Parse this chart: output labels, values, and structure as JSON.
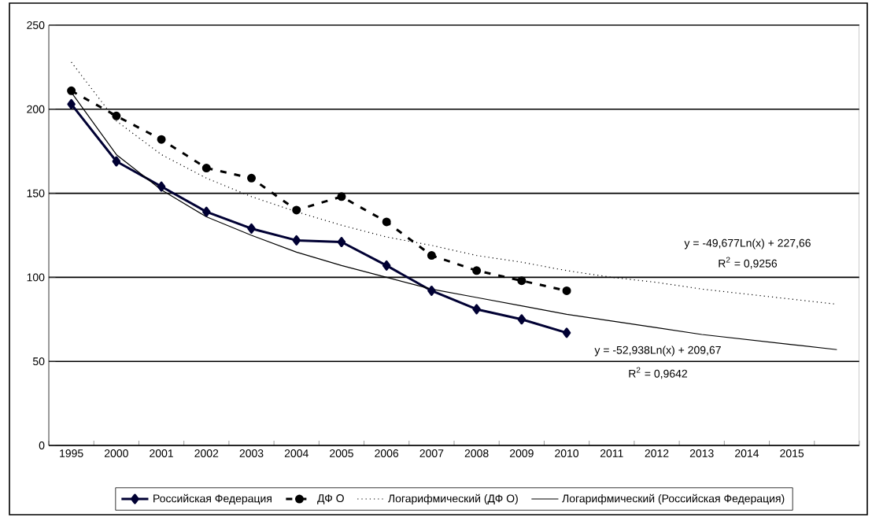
{
  "chart_data": {
    "type": "line",
    "categories": [
      "1995",
      "2000",
      "2001",
      "2002",
      "2003",
      "2004",
      "2005",
      "2006",
      "2007",
      "2008",
      "2009",
      "2010",
      "2011",
      "2012",
      "2013",
      "2014",
      "2015",
      null
    ],
    "series": [
      {
        "name": "Российская Федерация",
        "color": "#000033",
        "marker": "diamond",
        "line_style": "solid",
        "values": [
          203,
          169,
          154,
          139,
          129,
          122,
          121,
          107,
          92,
          81,
          75,
          67,
          null,
          null,
          null,
          null,
          null,
          null
        ]
      },
      {
        "name": "ДФ О",
        "color": "#000000",
        "marker": "circle",
        "line_style": "dashed",
        "values": [
          211,
          196,
          182,
          165,
          159,
          140,
          148,
          133,
          113,
          104,
          98,
          92,
          null,
          null,
          null,
          null,
          null,
          null
        ]
      },
      {
        "name": "Логарифмический (ДФ О)",
        "color": "#000000",
        "marker": "none",
        "line_style": "dotted",
        "values": [
          228,
          193,
          173,
          159,
          148,
          139,
          131,
          124,
          119,
          113,
          109,
          104,
          100,
          97,
          93,
          90,
          87,
          84
        ]
      },
      {
        "name": "Логарифмический (Российская Федерация)",
        "color": "#000000",
        "marker": "none",
        "line_style": "solid",
        "values": [
          210,
          173,
          152,
          136,
          125,
          115,
          107,
          100,
          93,
          88,
          83,
          78,
          74,
          70,
          66,
          63,
          60,
          57
        ]
      }
    ],
    "ylim": [
      0,
      250
    ],
    "yticks": [
      0,
      50,
      100,
      150,
      200,
      250
    ],
    "grid": "y",
    "legend": "bottom",
    "annotations": [
      "y = -49,677Ln(x)  + 227,66",
      "R$^{2}$ = 0,9256",
      "y = -52,938Ln(x)  + 209,67",
      "R$^{2}$ = 0,9642"
    ]
  }
}
